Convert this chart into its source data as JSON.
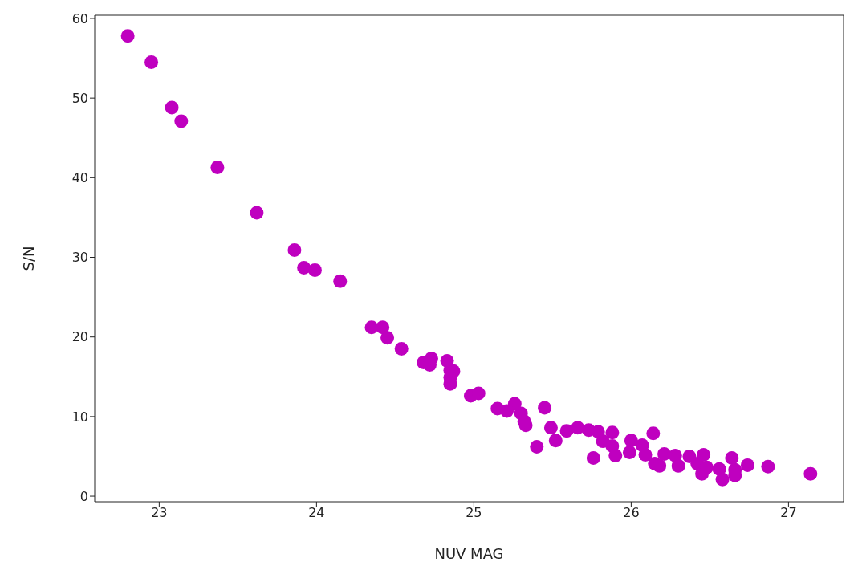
{
  "chart_data": {
    "type": "scatter",
    "xlabel": "NUV MAG",
    "ylabel": "S/N",
    "xlim": [
      22.59,
      27.35
    ],
    "ylim": [
      -0.7,
      60.4
    ],
    "xticks": [
      23,
      24,
      25,
      26,
      27
    ],
    "yticks": [
      0,
      10,
      20,
      30,
      40,
      50,
      60
    ],
    "grid": false,
    "legend": false,
    "marker": "circle",
    "series": [
      {
        "color": "#bf00bf",
        "x": [
          22.8,
          22.95,
          23.08,
          23.14,
          23.37,
          23.62,
          23.86,
          23.92,
          23.99,
          24.15,
          24.35,
          24.42,
          24.45,
          24.54,
          24.68,
          24.73,
          24.72,
          24.83,
          24.85,
          24.87,
          24.85,
          24.85,
          24.98,
          25.03,
          25.15,
          25.26,
          25.21,
          25.3,
          25.33,
          25.32,
          25.45,
          25.4,
          25.49,
          25.52,
          25.59,
          25.66,
          25.73,
          25.79,
          25.76,
          25.88,
          25.82,
          25.88,
          25.9,
          26.0,
          25.99,
          26.07,
          26.14,
          26.09,
          26.15,
          26.21,
          26.18,
          26.28,
          26.3,
          26.37,
          26.42,
          26.45,
          26.48,
          26.46,
          26.56,
          26.58,
          26.64,
          26.66,
          26.66,
          26.74,
          26.87,
          27.14
        ],
        "values": [
          57.8,
          54.5,
          48.8,
          47.1,
          41.3,
          35.6,
          30.9,
          28.7,
          28.4,
          27.0,
          21.2,
          21.2,
          19.9,
          18.5,
          16.8,
          17.3,
          16.5,
          17.0,
          15.8,
          15.7,
          14.9,
          14.1,
          12.6,
          12.9,
          11.0,
          11.6,
          10.7,
          10.4,
          8.9,
          9.4,
          11.1,
          6.2,
          8.6,
          7.0,
          8.2,
          8.6,
          8.3,
          8.1,
          4.8,
          8.0,
          6.9,
          6.3,
          5.1,
          7.0,
          5.5,
          6.4,
          7.9,
          5.2,
          4.1,
          5.3,
          3.8,
          5.1,
          3.8,
          5.0,
          4.1,
          2.8,
          3.6,
          5.2,
          3.4,
          2.1,
          4.8,
          3.3,
          2.6,
          3.9,
          3.7,
          2.8
        ]
      }
    ]
  }
}
